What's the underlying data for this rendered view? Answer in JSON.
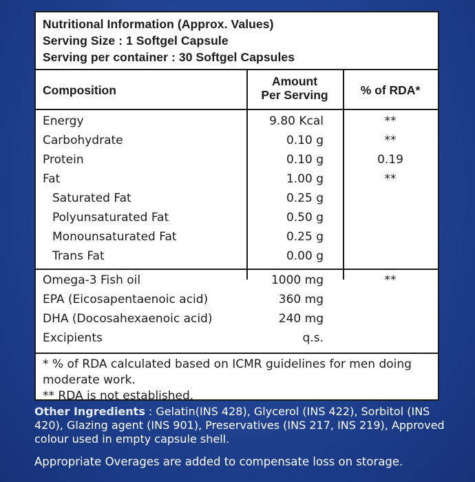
{
  "header": {
    "title": "Nutritional Information (Approx. Values)",
    "serving_size": "Serving Size : 1 Softgel Capsule",
    "servings_per_container": "Serving per container : 30 Softgel Capsules"
  },
  "columns": {
    "composition": "Composition",
    "amount_line1": "Amount",
    "amount_line2": "Per Serving",
    "rda": "% of RDA*"
  },
  "nutrients": [
    {
      "name": "Energy",
      "amount": "9.80 Kcal",
      "rda": "**"
    },
    {
      "name": "Carbohydrate",
      "amount": "0.10 g",
      "rda": "**"
    },
    {
      "name": "Protein",
      "amount": "0.10 g",
      "rda": "0.19"
    },
    {
      "name": "Fat",
      "amount": "1.00 g",
      "rda": "**"
    },
    {
      "name": "Saturated Fat",
      "amount": "0.25 g",
      "rda": ""
    },
    {
      "name": "Polyunsaturated Fat",
      "amount": "0.50 g",
      "rda": ""
    },
    {
      "name": "Monounsaturated Fat",
      "amount": "0.25 g",
      "rda": ""
    },
    {
      "name": "Trans Fat",
      "amount": "0.00 g",
      "rda": ""
    }
  ],
  "ingredients": [
    {
      "name": "Omega-3 Fish oil",
      "amount": "1000 mg",
      "rda": "**"
    },
    {
      "name": "EPA (Eicosapentaenoic acid)",
      "amount": "360 mg",
      "rda": ""
    },
    {
      "name": "DHA (Docosahexaenoic acid)",
      "amount": "240 mg",
      "rda": ""
    },
    {
      "name": "Excipients",
      "amount": "q.s.",
      "rda": ""
    }
  ],
  "notes": {
    "note1": "* % of RDA calculated based on ICMR guidelines for men doing moderate work.",
    "note2": "** RDA is not established."
  },
  "other_ingredients": {
    "label": "Other Ingredients",
    "text": " : Gelatin(INS 428), Glycerol (INS 422), Sorbitol (INS 420), Glazing agent  (INS 901), Preservatives (INS 217, INS 219), Approved colour used in empty capsule shell."
  },
  "overage_note": "Appropriate Overages are added to compensate loss on storage."
}
